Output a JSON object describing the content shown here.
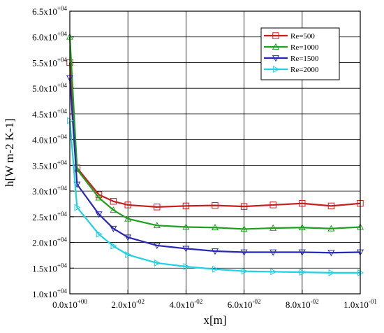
{
  "chart_data": {
    "type": "line",
    "xlabel": "x[m]",
    "ylabel": "h[W m-2 K-1]",
    "xlim": [
      0,
      0.1
    ],
    "ylim": [
      10000,
      65000
    ],
    "grid": true,
    "legend_position": "top-right",
    "x_ticks": [
      {
        "value": 0,
        "mant": "0.0x10",
        "exp": "+00"
      },
      {
        "value": 0.02,
        "mant": "2.0x10",
        "exp": "-02"
      },
      {
        "value": 0.04,
        "mant": "4.0x10",
        "exp": "-02"
      },
      {
        "value": 0.06,
        "mant": "6.0x10",
        "exp": "-02"
      },
      {
        "value": 0.08,
        "mant": "8.0x10",
        "exp": "-02"
      },
      {
        "value": 0.1,
        "mant": "1.0x10",
        "exp": "-01"
      }
    ],
    "y_ticks": [
      {
        "value": 10000,
        "mant": "1.0x10",
        "exp": "+04"
      },
      {
        "value": 15000,
        "mant": "1.5x10",
        "exp": "+04"
      },
      {
        "value": 20000,
        "mant": "2.0x10",
        "exp": "+04"
      },
      {
        "value": 25000,
        "mant": "2.5x10",
        "exp": "+04"
      },
      {
        "value": 30000,
        "mant": "3.0x10",
        "exp": "+04"
      },
      {
        "value": 35000,
        "mant": "3.5x10",
        "exp": "+04"
      },
      {
        "value": 40000,
        "mant": "4.0x10",
        "exp": "+04"
      },
      {
        "value": 45000,
        "mant": "4.5x10",
        "exp": "+04"
      },
      {
        "value": 50000,
        "mant": "5.0x10",
        "exp": "+04"
      },
      {
        "value": 55000,
        "mant": "5.5x10",
        "exp": "+04"
      },
      {
        "value": 60000,
        "mant": "6.0x10",
        "exp": "+04"
      },
      {
        "value": 65000,
        "mant": "6.5x10",
        "exp": "+04"
      }
    ],
    "series": [
      {
        "name": "Re=500",
        "color": "#c81e1e",
        "marker": "square",
        "x": [
          0,
          0.0025,
          0.01,
          0.015,
          0.02,
          0.03,
          0.04,
          0.05,
          0.06,
          0.07,
          0.08,
          0.09,
          0.1
        ],
        "y": [
          55000,
          34500,
          29300,
          28000,
          27300,
          26900,
          27100,
          27200,
          27000,
          27300,
          27600,
          27100,
          27600
        ]
      },
      {
        "name": "Re=1000",
        "color": "#1ea01e",
        "marker": "triangle-up",
        "x": [
          0,
          0.0025,
          0.01,
          0.015,
          0.02,
          0.03,
          0.04,
          0.05,
          0.06,
          0.07,
          0.08,
          0.09,
          0.1
        ],
        "y": [
          60000,
          34200,
          28700,
          26300,
          24600,
          23300,
          23000,
          22900,
          22600,
          22800,
          22900,
          22700,
          23000
        ]
      },
      {
        "name": "Re=1500",
        "color": "#2828b4",
        "marker": "triangle-down",
        "x": [
          0,
          0.0025,
          0.01,
          0.015,
          0.02,
          0.03,
          0.04,
          0.05,
          0.06,
          0.07,
          0.08,
          0.09,
          0.1
        ],
        "y": [
          52000,
          31300,
          25500,
          22700,
          21000,
          19400,
          18800,
          18300,
          18100,
          18100,
          18100,
          18000,
          18100
        ]
      },
      {
        "name": "Re=2000",
        "color": "#1ed2e6",
        "marker": "triangle-right",
        "x": [
          0,
          0.0025,
          0.01,
          0.015,
          0.02,
          0.03,
          0.04,
          0.05,
          0.06,
          0.07,
          0.08,
          0.09,
          0.1
        ],
        "y": [
          43700,
          26800,
          21600,
          19300,
          17600,
          16000,
          15300,
          14800,
          14400,
          14300,
          14200,
          14100,
          14100
        ]
      }
    ]
  }
}
